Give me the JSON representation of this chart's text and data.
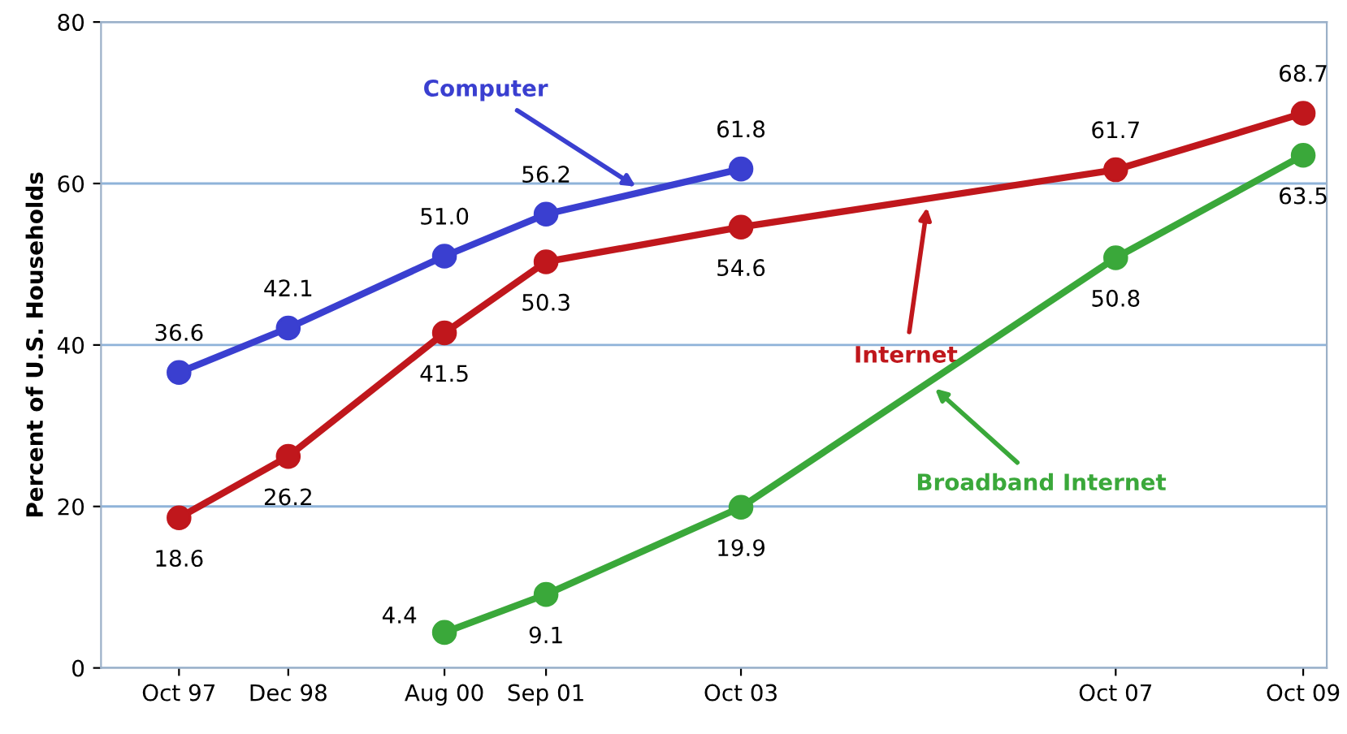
{
  "chart_data": {
    "type": "line",
    "ylabel": "Percent of U.S. Households",
    "x": [
      "1997-10",
      "1998-12",
      "2000-08",
      "2001-09",
      "2003-10",
      "2007-10",
      "2009-10"
    ],
    "series": [
      {
        "name": "Computer",
        "color": "#3a3fd0",
        "values": [
          36.6,
          42.1,
          51.0,
          56.2,
          61.8,
          null,
          null
        ],
        "value_labels": [
          "36.6",
          "42.1",
          "51.0",
          "56.2",
          "61.8",
          null,
          null
        ]
      },
      {
        "name": "Internet",
        "color": "#c0171c",
        "values": [
          18.6,
          26.2,
          41.5,
          50.3,
          54.6,
          61.7,
          68.7
        ],
        "value_labels": [
          "18.6",
          "26.2",
          "41.5",
          "50.3",
          "54.6",
          "61.7",
          "68.7"
        ]
      },
      {
        "name": "Broadband Internet",
        "color": "#3aa83a",
        "values": [
          null,
          null,
          4.4,
          9.1,
          19.9,
          50.8,
          63.5
        ],
        "value_labels": [
          null,
          null,
          "4.4",
          "9.1",
          "19.9",
          "50.8",
          "63.5"
        ]
      }
    ],
    "xlim": [
      "1996-12",
      "2010-01"
    ],
    "xticks": [
      {
        "value": "1997-10",
        "label": "Oct 97"
      },
      {
        "value": "1998-12",
        "label": "Dec 98"
      },
      {
        "value": "2000-08",
        "label": "Aug 00"
      },
      {
        "value": "2001-09",
        "label": "Sep 01"
      },
      {
        "value": "2003-10",
        "label": "Oct 03"
      },
      {
        "value": "2007-10",
        "label": "Oct 07"
      },
      {
        "value": "2009-10",
        "label": "Oct 09"
      }
    ],
    "ylim": [
      0,
      80
    ],
    "yticks": [
      0,
      20,
      40,
      60,
      80
    ],
    "grid": "y",
    "marker": "circle",
    "line_style": "solid"
  }
}
